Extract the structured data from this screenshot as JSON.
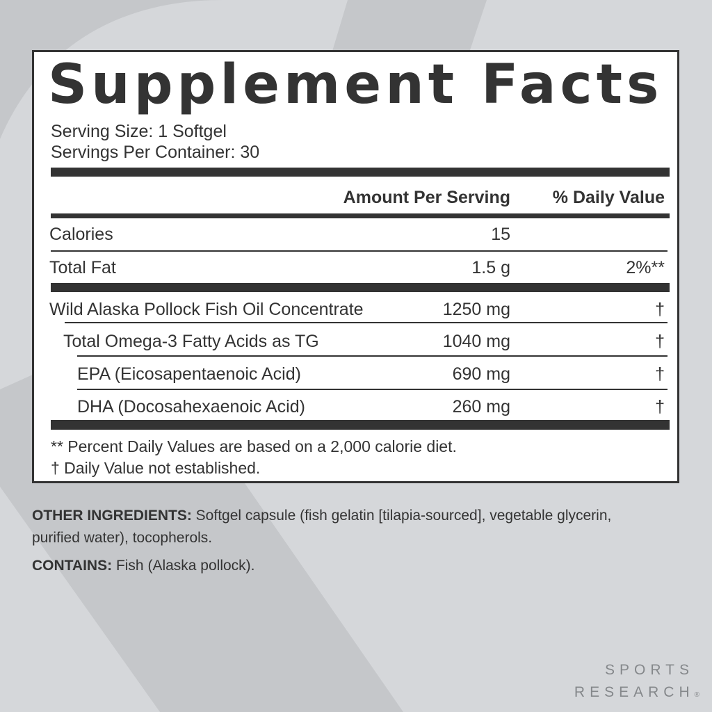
{
  "title": "Supplement Facts",
  "serving_size": "Serving Size: 1 Softgel",
  "servings_per_container": "Servings Per Container: 30",
  "headers": {
    "amount": "Amount Per Serving",
    "daily_value": "% Daily Value"
  },
  "rows": [
    {
      "name": "Calories",
      "amount": "15",
      "dv": ""
    },
    {
      "name": "Total Fat",
      "amount": "1.5 g",
      "dv": "2%**"
    },
    {
      "name": "Wild Alaska Pollock Fish Oil Concentrate",
      "amount": "1250 mg",
      "dv": "†"
    },
    {
      "name": "Total Omega-3 Fatty Acids as TG",
      "amount": "1040 mg",
      "dv": "†"
    },
    {
      "name": "EPA (Eicosapentaenoic Acid)",
      "amount": "690 mg",
      "dv": "†"
    },
    {
      "name": "DHA (Docosahexaenoic Acid)",
      "amount": "260 mg",
      "dv": "†"
    }
  ],
  "footnotes": [
    "** Percent Daily Values are based on a 2,000 calorie diet.",
    "†  Daily Value not established."
  ],
  "other_ingredients": {
    "label": "OTHER INGREDIENTS:",
    "text": " Softgel capsule (fish gelatin [tilapia-sourced], vegetable glycerin, purified water), tocopherols."
  },
  "contains": {
    "label": "CONTAINS:",
    "text": " Fish (Alaska pollock)."
  },
  "brand": {
    "line1": "SPORTS",
    "line2": "RESEARCH",
    "mark": "®"
  },
  "colors": {
    "background": "#d5d7da",
    "text": "#333333",
    "brand": "#85888b"
  }
}
